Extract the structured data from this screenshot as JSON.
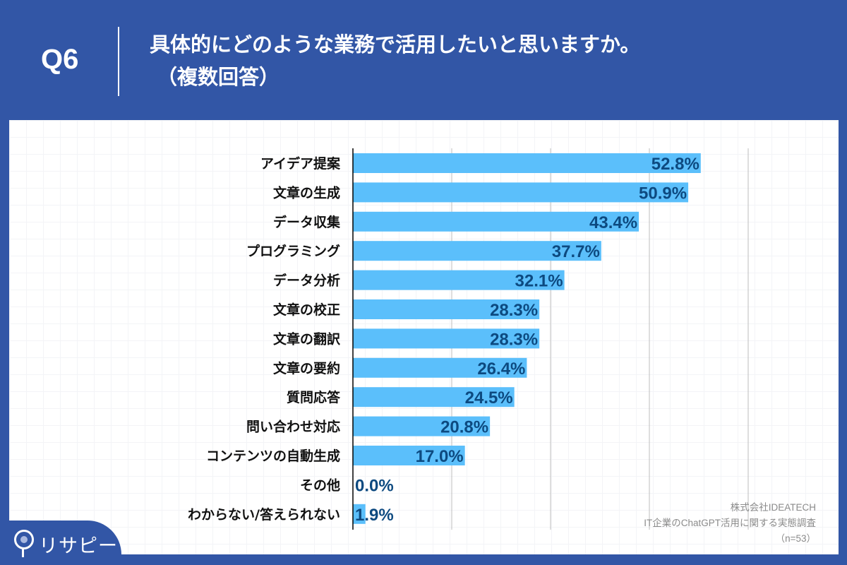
{
  "header": {
    "question": "Q6",
    "title_line1": "具体的にどのような業務で活用したいと思いますか。",
    "title_line2": "（複数回答）"
  },
  "source": {
    "company": "株式会社IDEATECH",
    "survey": "IT企業のChatGPT活用に関する実態調査",
    "sample": "（n=53）"
  },
  "logo": {
    "text": "リサピー"
  },
  "colors": {
    "background": "#3256a6",
    "bar": "#5bbffb",
    "label": "#0d4a80"
  },
  "chart_data": {
    "type": "bar",
    "orientation": "horizontal",
    "xlim": [
      0,
      60
    ],
    "grid": true,
    "gridlines": [
      15,
      30,
      45,
      60
    ],
    "categories": [
      "アイデア提案",
      "文章の生成",
      "データ収集",
      "プログラミング",
      "データ分析",
      "文章の校正",
      "文章の翻訳",
      "文章の要約",
      "質問応答",
      "問い合わせ対応",
      "コンテンツの自動生成",
      "その他",
      "わからない/答えられない"
    ],
    "values": [
      52.8,
      50.9,
      43.4,
      37.7,
      32.1,
      28.3,
      28.3,
      26.4,
      24.5,
      20.8,
      17.0,
      0.0,
      1.9
    ],
    "value_labels": [
      "52.8%",
      "50.9%",
      "43.4%",
      "37.7%",
      "32.1%",
      "28.3%",
      "28.3%",
      "26.4%",
      "24.5%",
      "20.8%",
      "17.0%",
      "0.0%",
      "1.9%"
    ]
  }
}
